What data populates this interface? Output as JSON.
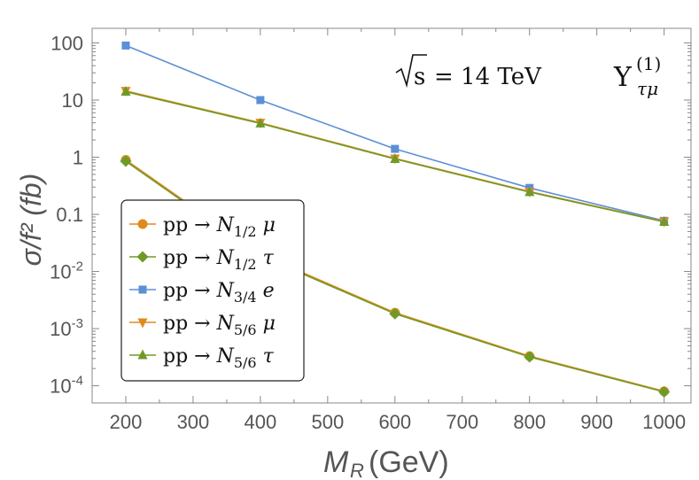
{
  "chart_data": {
    "type": "line",
    "ylabel": "σ/f² (fb)",
    "xlabel_main": "M",
    "xlabel_sub": "R",
    "xlabel_units": "(GeV)",
    "annotation_energy": {
      "lhs": "s",
      "rhs": "= 14 TeV"
    },
    "annotation_coupling": {
      "base": "Y",
      "sup": "(1)",
      "sub": "τμ"
    },
    "x_ticks": [
      "200",
      "300",
      "400",
      "500",
      "600",
      "700",
      "800",
      "900",
      "1000"
    ],
    "y_ticks": [
      {
        "value": 100,
        "label": "100"
      },
      {
        "value": 10,
        "label": "10"
      },
      {
        "value": 1,
        "label": "1"
      },
      {
        "value": 0.1,
        "label": "0.1"
      },
      {
        "value": 0.01,
        "base": "10",
        "exp": "-2"
      },
      {
        "value": 0.001,
        "base": "10",
        "exp": "-3"
      },
      {
        "value": 0.0001,
        "base": "10",
        "exp": "-4"
      }
    ],
    "xlim": [
      150,
      1040
    ],
    "ylim": [
      5e-05,
      180
    ],
    "y_scale": "log",
    "legend_position": "lower-left",
    "series": [
      {
        "name": {
          "pre": "pp → ",
          "N": "N",
          "sub": "1/2",
          "post": " μ"
        },
        "marker": "circle",
        "color": "#e08a1e",
        "x": [
          200,
          400,
          600,
          800,
          1000
        ],
        "y": [
          0.9,
          0.02,
          0.0019,
          0.00033,
          8e-05
        ]
      },
      {
        "name": {
          "pre": "pp → ",
          "N": "N",
          "sub": "1/2",
          "post": " τ"
        },
        "marker": "diamond",
        "color": "#6f9a28",
        "x": [
          200,
          400,
          600,
          800,
          1000
        ],
        "y": [
          0.85,
          0.019,
          0.00182,
          0.00032,
          7.8e-05
        ]
      },
      {
        "name": {
          "pre": "pp → ",
          "N": "N",
          "sub": "3/4",
          "post": " e"
        },
        "marker": "square",
        "color": "#5b8fd6",
        "x": [
          200,
          400,
          600,
          800,
          1000
        ],
        "y": [
          90,
          10,
          1.4,
          0.29,
          0.077
        ]
      },
      {
        "name": {
          "pre": "pp → ",
          "N": "N",
          "sub": "5/6",
          "post": " μ"
        },
        "marker": "triangle-down",
        "color": "#e08a1e",
        "x": [
          200,
          400,
          600,
          800,
          1000
        ],
        "y": [
          14.5,
          4.0,
          0.95,
          0.25,
          0.075
        ]
      },
      {
        "name": {
          "pre": "pp → ",
          "N": "N",
          "sub": "5/6",
          "post": " τ"
        },
        "marker": "triangle-up",
        "color": "#6f9a28",
        "x": [
          200,
          400,
          600,
          800,
          1000
        ],
        "y": [
          14.0,
          3.9,
          0.93,
          0.245,
          0.074
        ]
      }
    ]
  }
}
